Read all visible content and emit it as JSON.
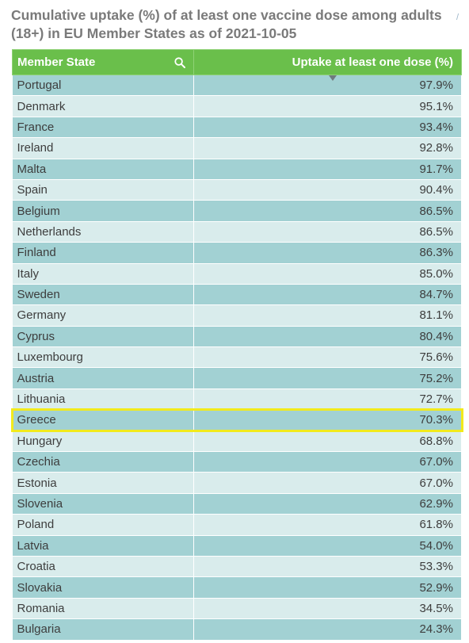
{
  "title": "Cumulative uptake (%) of at least one vaccine dose among adults (18+) in EU Member States as of 2021-10-05",
  "corner_mark": "/",
  "header": {
    "col_state": "Member State",
    "col_uptake": "Uptake at least one dose (%)"
  },
  "colors": {
    "header_bg": "#6abf4b",
    "row_odd": "#a2d1d3",
    "row_even": "#d9ecec",
    "highlight": "#f2ea1c",
    "title": "#7a7a7a"
  },
  "highlighted_row": "Greece",
  "chart_data": {
    "type": "table",
    "columns": [
      "Member State",
      "Uptake at least one dose (%)"
    ],
    "sort": "descending by uptake",
    "rows": [
      {
        "state": "Portugal",
        "uptake": "97.9%"
      },
      {
        "state": "Denmark",
        "uptake": "95.1%"
      },
      {
        "state": "France",
        "uptake": "93.4%"
      },
      {
        "state": "Ireland",
        "uptake": "92.8%"
      },
      {
        "state": "Malta",
        "uptake": "91.7%"
      },
      {
        "state": "Spain",
        "uptake": "90.4%"
      },
      {
        "state": "Belgium",
        "uptake": "86.5%"
      },
      {
        "state": "Netherlands",
        "uptake": "86.5%"
      },
      {
        "state": "Finland",
        "uptake": "86.3%"
      },
      {
        "state": "Italy",
        "uptake": "85.0%"
      },
      {
        "state": "Sweden",
        "uptake": "84.7%"
      },
      {
        "state": "Germany",
        "uptake": "81.1%"
      },
      {
        "state": "Cyprus",
        "uptake": "80.4%"
      },
      {
        "state": "Luxembourg",
        "uptake": "75.6%"
      },
      {
        "state": "Austria",
        "uptake": "75.2%"
      },
      {
        "state": "Lithuania",
        "uptake": "72.7%"
      },
      {
        "state": "Greece",
        "uptake": "70.3%"
      },
      {
        "state": "Hungary",
        "uptake": "68.8%"
      },
      {
        "state": "Czechia",
        "uptake": "67.0%"
      },
      {
        "state": "Estonia",
        "uptake": "67.0%"
      },
      {
        "state": "Slovenia",
        "uptake": "62.9%"
      },
      {
        "state": "Poland",
        "uptake": "61.8%"
      },
      {
        "state": "Latvia",
        "uptake": "54.0%"
      },
      {
        "state": "Croatia",
        "uptake": "53.3%"
      },
      {
        "state": "Slovakia",
        "uptake": "52.9%"
      },
      {
        "state": "Romania",
        "uptake": "34.5%"
      },
      {
        "state": "Bulgaria",
        "uptake": "24.3%"
      }
    ]
  }
}
